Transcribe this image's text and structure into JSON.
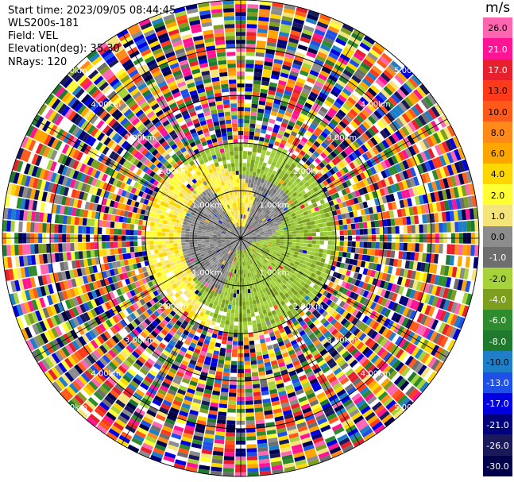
{
  "header": {
    "start_time": "Start time: 2023/09/05 08:44:45",
    "instrument": "WLS200s-181",
    "field": "Field: VEL",
    "elevation": "Elevation(deg): 35.30",
    "nrays": "NRays: 120"
  },
  "colorbar": {
    "unit": "m/s",
    "ticks": [
      "26.0",
      "21.0",
      "17.0",
      "13.0",
      "10.0",
      "8.0",
      "6.0",
      "4.0",
      "2.0",
      "1.0",
      "0.0",
      "-1.0",
      "-2.0",
      "-4.0",
      "-6.0",
      "-8.0",
      "-10.0",
      "-13.0",
      "-17.0",
      "-21.0",
      "-26.0",
      "-30.0"
    ],
    "colors": [
      "#ff66b2",
      "#ff1493",
      "#e8202e",
      "#ff3a1a",
      "#ff5a1a",
      "#ff8a1a",
      "#ffa500",
      "#ffd700",
      "#ffff33",
      "#f4e47a",
      "#8c8c8c",
      "#6e6e6e",
      "#a6d23a",
      "#7d9e1e",
      "#2e8b2e",
      "#1f7a2e",
      "#1e7fc8",
      "#1e4fe6",
      "#0000e0",
      "#00007a",
      "#1a1a5a",
      "#00004a"
    ]
  },
  "chart_data": {
    "type": "ppi",
    "field": "VEL",
    "unit": "m/s",
    "range_rings_km": [
      1.0,
      2.0,
      3.0,
      4.0,
      5.0
    ],
    "range_ring_labels": [
      "1.00km",
      "2.00km",
      "3.00km",
      "4.00km",
      "5.00km"
    ],
    "nrays": 120,
    "value_range": [
      -30.0,
      26.0
    ],
    "regions": [
      {
        "range_km": [
          0,
          1.0
        ],
        "sector": "west-southwest",
        "velocity_mps": 0.0,
        "color_class": "gray"
      },
      {
        "range_km": [
          0,
          2.0
        ],
        "sector": "north",
        "velocity_mps": 1.5,
        "color_class": "yellow"
      },
      {
        "range_km": [
          0,
          2.0
        ],
        "sector": "south-east",
        "velocity_mps": -2.0,
        "color_class": "green"
      },
      {
        "range_km": [
          2.0,
          5.0
        ],
        "sector": "all",
        "velocity_mps": null,
        "color_class": "noise"
      }
    ]
  }
}
